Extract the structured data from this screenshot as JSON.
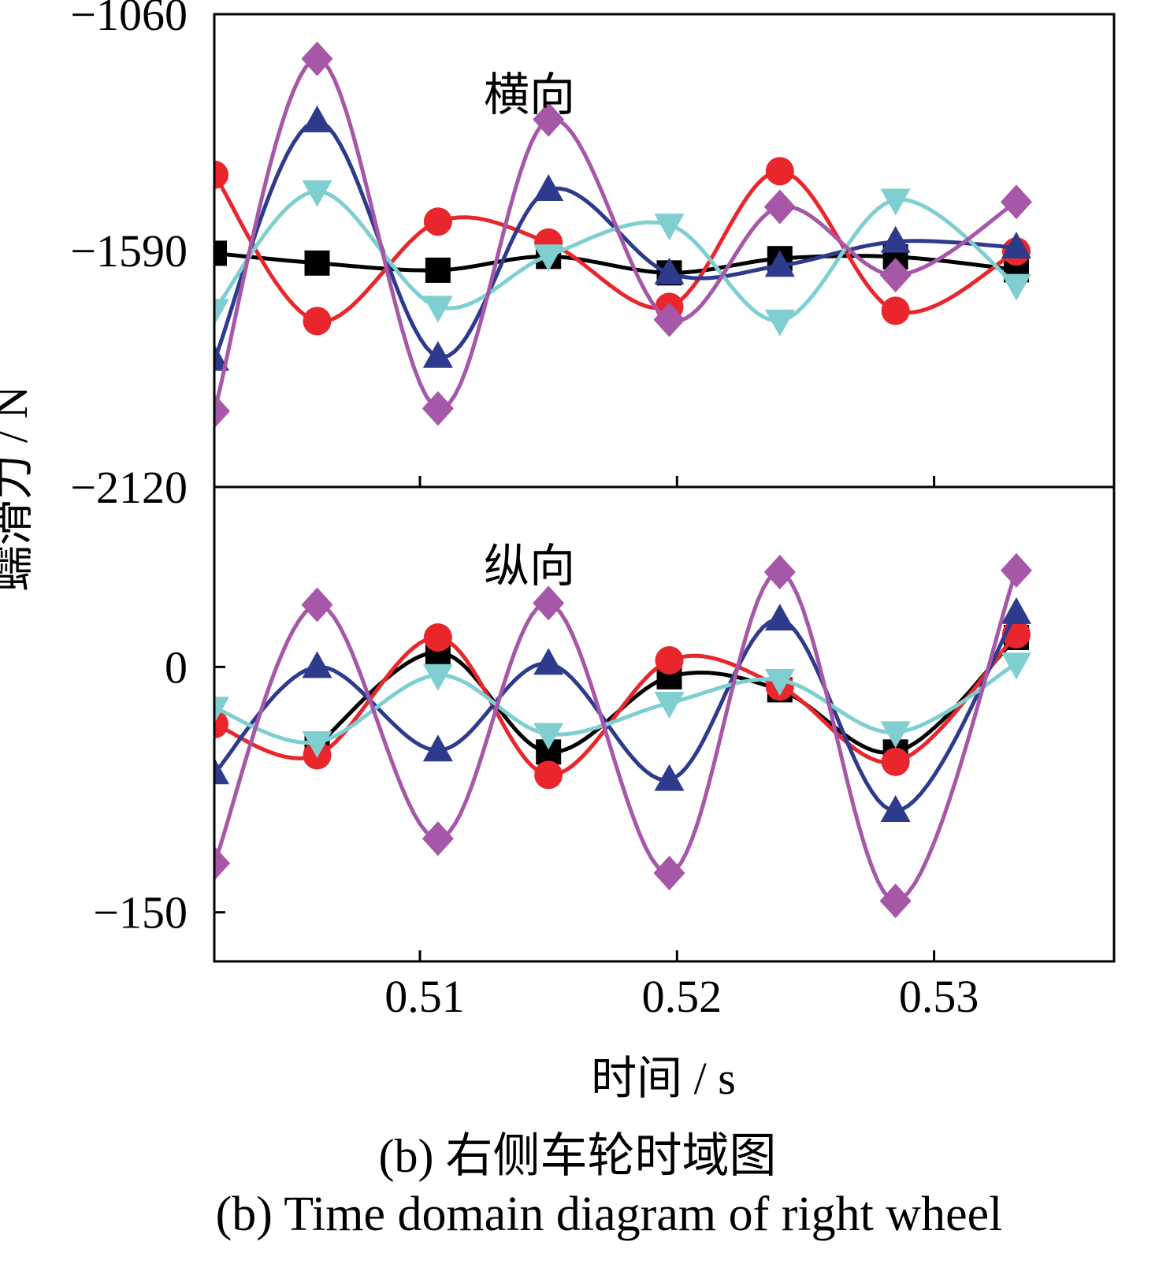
{
  "chart_data": [
    {
      "panel": "top",
      "type": "line",
      "annotation": "横向",
      "ylabel": "蠕滑力 / N",
      "xlim": [
        0.502,
        0.537
      ],
      "ylim": [
        -2120,
        -1060
      ],
      "yticks": [
        "−1060",
        "−1590",
        "−2120"
      ],
      "ytick_values": [
        -1060,
        -1590,
        -2120
      ],
      "xticks": [
        0.51,
        0.52,
        0.53
      ],
      "grid": false,
      "series": [
        {
          "marker": "square",
          "color": "#000000",
          "x": [
            0.502,
            0.506,
            0.5107,
            0.515,
            0.5197,
            0.524,
            0.5285,
            0.5332
          ],
          "y": [
            -1596,
            -1618,
            -1634,
            -1603,
            -1640,
            -1608,
            -1604,
            -1633
          ]
        },
        {
          "marker": "circle",
          "color": "#e8262b",
          "x": [
            0.502,
            0.506,
            0.5107,
            0.515,
            0.5197,
            0.524,
            0.5285,
            0.5332
          ],
          "y": [
            -1420,
            -1748,
            -1525,
            -1572,
            -1716,
            -1412,
            -1725,
            -1592
          ]
        },
        {
          "marker": "triangle-up",
          "color": "#2e3a8c",
          "x": [
            0.502,
            0.506,
            0.5107,
            0.515,
            0.5197,
            0.524,
            0.5285,
            0.5332
          ],
          "y": [
            -1835,
            -1300,
            -1828,
            -1454,
            -1641,
            -1624,
            -1570,
            -1583
          ]
        },
        {
          "marker": "triangle-down",
          "color": "#7fcfd0",
          "x": [
            0.502,
            0.506,
            0.5107,
            0.515,
            0.5197,
            0.524,
            0.5285,
            0.5332
          ],
          "y": [
            -1723,
            -1457,
            -1716,
            -1601,
            -1532,
            -1747,
            -1476,
            -1667
          ]
        },
        {
          "marker": "diamond",
          "color": "#a657a8",
          "x": [
            0.502,
            0.506,
            0.5107,
            0.515,
            0.5197,
            0.524,
            0.5285,
            0.5332
          ],
          "y": [
            -1950,
            -1160,
            -1944,
            -1296,
            -1745,
            -1492,
            -1645,
            -1481
          ]
        }
      ]
    },
    {
      "panel": "bottom",
      "type": "line",
      "annotation": "纵向",
      "xlabel": "时间 / s",
      "xlim": [
        0.502,
        0.537
      ],
      "ylim": [
        -180,
        110
      ],
      "yticks": [
        "0",
        "−150"
      ],
      "ytick_values": [
        0,
        -150
      ],
      "xticks": [
        0.51,
        0.52,
        0.53
      ],
      "xtick_labels": [
        "0.51",
        "0.52",
        "0.53"
      ],
      "grid": false,
      "series": [
        {
          "marker": "square",
          "color": "#000000",
          "x": [
            0.506,
            0.5107,
            0.515,
            0.5197,
            0.524,
            0.5285,
            0.5332
          ],
          "y": [
            -48,
            9,
            -52,
            -6,
            -14,
            -52,
            18
          ]
        },
        {
          "marker": "circle",
          "color": "#e8262b",
          "x": [
            0.502,
            0.506,
            0.5107,
            0.515,
            0.5197,
            0.524,
            0.5285,
            0.5332
          ],
          "y": [
            -35,
            -54,
            18,
            -66,
            4,
            -12,
            -58,
            20
          ]
        },
        {
          "marker": "triangle-up",
          "color": "#2e3a8c",
          "x": [
            0.502,
            0.506,
            0.5107,
            0.515,
            0.5197,
            0.524,
            0.5285,
            0.5332
          ],
          "y": [
            -65,
            0,
            -51,
            2,
            -69,
            29,
            -88,
            33
          ]
        },
        {
          "marker": "triangle-down",
          "color": "#7fcfd0",
          "x": [
            0.502,
            0.506,
            0.5107,
            0.515,
            0.5197,
            0.524,
            0.5285,
            0.5332
          ],
          "y": [
            -25,
            -46,
            -5,
            -41,
            -22,
            -8,
            -40,
            2
          ]
        },
        {
          "marker": "diamond",
          "color": "#a657a8",
          "x": [
            0.502,
            0.506,
            0.5107,
            0.515,
            0.5197,
            0.524,
            0.5285,
            0.5332
          ],
          "y": [
            -120,
            38,
            -105,
            39,
            -126,
            58,
            -143,
            59
          ]
        }
      ]
    }
  ],
  "caption": {
    "chinese": "(b) 右侧车轮时域图",
    "english": "(b) Time domain diagram of right wheel"
  }
}
